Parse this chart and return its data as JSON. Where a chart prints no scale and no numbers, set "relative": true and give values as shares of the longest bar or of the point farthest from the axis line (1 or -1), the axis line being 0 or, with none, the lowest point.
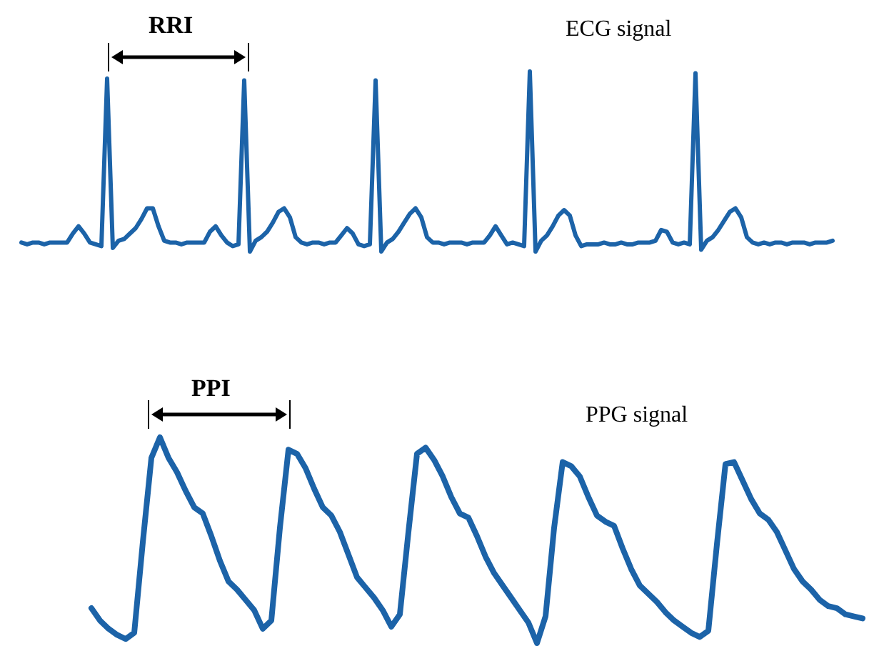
{
  "chart_data": [
    {
      "type": "line",
      "title": "ECG signal",
      "annotations": [
        "RRI"
      ],
      "relative": true,
      "categories": [
        null,
        null,
        null,
        null,
        null,
        null,
        null,
        null,
        null,
        null,
        null,
        null,
        null,
        null,
        null,
        null,
        null,
        null,
        null,
        null,
        null,
        null,
        null,
        null,
        null,
        null,
        null,
        null,
        null,
        null,
        null,
        null,
        null,
        null,
        null,
        null,
        null,
        null,
        null,
        null,
        null,
        null,
        null,
        null,
        null,
        null,
        null,
        null,
        null,
        null,
        null,
        null,
        null,
        null,
        null,
        null,
        null,
        null,
        null,
        null,
        null,
        null,
        null,
        null,
        null,
        null,
        null,
        null,
        null,
        null,
        null,
        null,
        null,
        null,
        null,
        null,
        null,
        null,
        null,
        null,
        null,
        null,
        null,
        null,
        null,
        null,
        null,
        null,
        null,
        null,
        null,
        null,
        null,
        null,
        null,
        null,
        null,
        null,
        null,
        null,
        null,
        null,
        null,
        null,
        null,
        null,
        null,
        null,
        null,
        null,
        null,
        null,
        null,
        null,
        null,
        null,
        null,
        null,
        null,
        null,
        null,
        null,
        null,
        null,
        null,
        null,
        null,
        null,
        null,
        null,
        null,
        null,
        null,
        null,
        null,
        null,
        null,
        null,
        null,
        null,
        null,
        null,
        null
      ],
      "series": [
        {
          "color": "#1c63a8",
          "values": [
            0.05,
            0.04,
            0.05,
            0.05,
            0.04,
            0.05,
            0.05,
            0.05,
            0.05,
            0.1,
            0.14,
            0.1,
            0.05,
            0.04,
            0.03,
            0.96,
            0.02,
            0.06,
            0.07,
            0.1,
            0.13,
            0.18,
            0.24,
            0.24,
            0.14,
            0.06,
            0.05,
            0.05,
            0.04,
            0.05,
            0.05,
            0.05,
            0.05,
            0.11,
            0.14,
            0.09,
            0.05,
            0.03,
            0.04,
            0.95,
            0.0,
            0.06,
            0.08,
            0.11,
            0.16,
            0.22,
            0.24,
            0.19,
            0.08,
            0.05,
            0.04,
            0.05,
            0.05,
            0.04,
            0.05,
            0.05,
            0.09,
            0.13,
            0.1,
            0.04,
            0.03,
            0.04,
            0.95,
            0.0,
            0.05,
            0.07,
            0.11,
            0.16,
            0.21,
            0.24,
            0.19,
            0.08,
            0.05,
            0.05,
            0.04,
            0.05,
            0.05,
            0.05,
            0.04,
            0.05,
            0.05,
            0.05,
            0.09,
            0.14,
            0.09,
            0.04,
            0.05,
            0.04,
            0.03,
            1.0,
            0.0,
            0.06,
            0.09,
            0.14,
            0.2,
            0.23,
            0.2,
            0.09,
            0.03,
            0.04,
            0.04,
            0.04,
            0.05,
            0.04,
            0.04,
            0.05,
            0.04,
            0.04,
            0.05,
            0.05,
            0.05,
            0.06,
            0.12,
            0.11,
            0.05,
            0.04,
            0.05,
            0.04,
            0.99,
            0.01,
            0.06,
            0.08,
            0.12,
            0.17,
            0.22,
            0.24,
            0.19,
            0.08,
            0.05,
            0.04,
            0.05,
            0.04,
            0.05,
            0.05,
            0.04,
            0.05,
            0.05,
            0.05,
            0.04,
            0.05,
            0.05,
            0.05,
            0.06
          ]
        }
      ]
    },
    {
      "type": "line",
      "title": "PPG signal",
      "annotations": [
        "PPI"
      ],
      "relative": true,
      "categories": [
        null,
        null,
        null,
        null,
        null,
        null,
        null,
        null,
        null,
        null,
        null,
        null,
        null,
        null,
        null,
        null,
        null,
        null,
        null,
        null,
        null,
        null,
        null,
        null,
        null,
        null,
        null,
        null,
        null,
        null,
        null,
        null,
        null,
        null,
        null,
        null,
        null,
        null,
        null,
        null,
        null,
        null,
        null,
        null,
        null,
        null,
        null,
        null,
        null,
        null,
        null,
        null,
        null,
        null,
        null,
        null,
        null,
        null,
        null,
        null,
        null,
        null,
        null,
        null,
        null,
        null,
        null,
        null,
        null,
        null,
        null,
        null,
        null,
        null,
        null,
        null,
        null,
        null,
        null,
        null,
        null,
        null,
        null,
        null,
        null,
        null,
        null,
        null,
        null,
        null,
        null
      ],
      "series": [
        {
          "color": "#1c63a8",
          "values": [
            0.17,
            0.11,
            0.07,
            0.04,
            0.02,
            0.05,
            0.49,
            0.9,
            1.0,
            0.9,
            0.83,
            0.74,
            0.66,
            0.63,
            0.52,
            0.4,
            0.3,
            0.26,
            0.21,
            0.16,
            0.07,
            0.11,
            0.56,
            0.94,
            0.92,
            0.85,
            0.75,
            0.66,
            0.62,
            0.54,
            0.43,
            0.32,
            0.27,
            0.22,
            0.16,
            0.08,
            0.14,
            0.54,
            0.92,
            0.95,
            0.89,
            0.81,
            0.71,
            0.63,
            0.61,
            0.52,
            0.42,
            0.34,
            0.28,
            0.22,
            0.16,
            0.1,
            0.0,
            0.13,
            0.56,
            0.88,
            0.86,
            0.81,
            0.71,
            0.62,
            0.59,
            0.57,
            0.46,
            0.36,
            0.28,
            0.24,
            0.2,
            0.15,
            0.11,
            0.08,
            0.05,
            0.03,
            0.06,
            0.48,
            0.87,
            0.88,
            0.79,
            0.7,
            0.63,
            0.6,
            0.54,
            0.45,
            0.36,
            0.3,
            0.26,
            0.21,
            0.18,
            0.17,
            0.14,
            0.13,
            0.12
          ]
        }
      ]
    }
  ]
}
